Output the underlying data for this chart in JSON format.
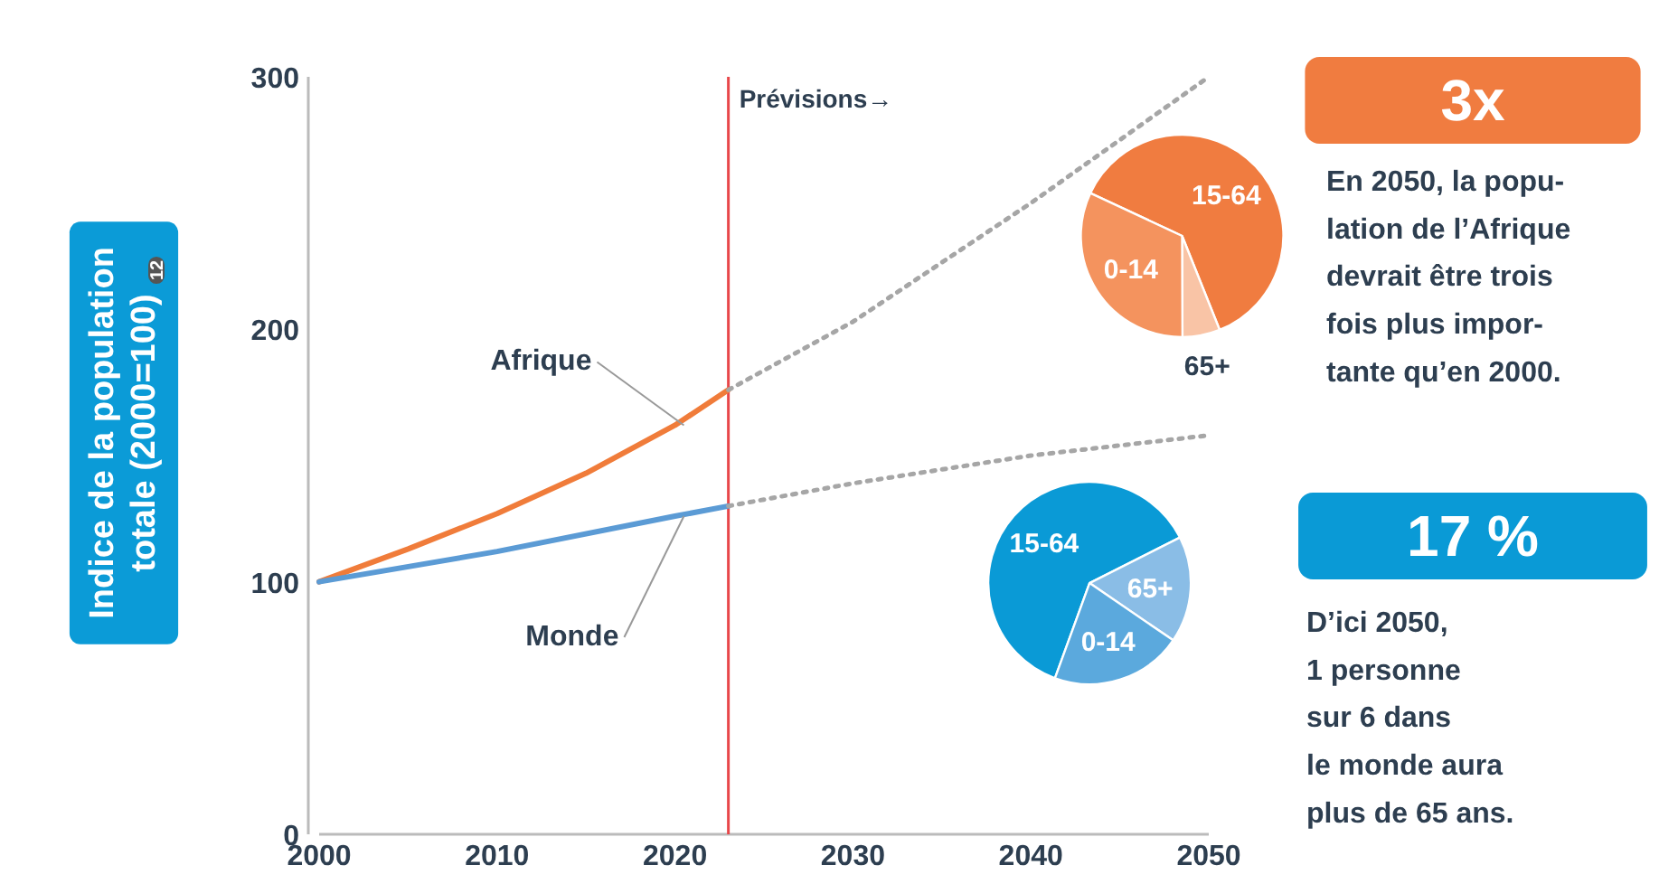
{
  "chart_data": [
    {
      "type": "line",
      "ylabel": "Indice de la population\ntotale (2000=100)",
      "xlim": [
        2000,
        2050
      ],
      "xticks": [
        2000,
        2010,
        2020,
        2030,
        2040,
        2050
      ],
      "ylim": [
        0,
        300
      ],
      "yticks": [
        0,
        100,
        200,
        300
      ],
      "grid": false,
      "marker": "none",
      "series": [
        {
          "name": "Afrique",
          "color": "#f07c3a",
          "line_style": "solid",
          "x": [
            2000,
            2005,
            2010,
            2015,
            2020,
            2023
          ],
          "values": [
            100,
            113,
            127,
            143,
            162,
            176
          ]
        },
        {
          "color": "#a6a6a6",
          "line_style": "dotted",
          "x": [
            2023,
            2030,
            2040,
            2050
          ],
          "values": [
            176,
            203,
            250,
            300
          ]
        },
        {
          "name": "Monde",
          "color": "#5b9bd5",
          "line_style": "solid",
          "x": [
            2000,
            2010,
            2020,
            2023
          ],
          "values": [
            100,
            112,
            126,
            130
          ]
        },
        {
          "color": "#a6a6a6",
          "line_style": "dotted",
          "x": [
            2023,
            2030,
            2040,
            2050
          ],
          "values": [
            130,
            139,
            150,
            158
          ]
        }
      ],
      "ref_lines": [
        {
          "axis": "x",
          "value": 2023,
          "label": "Prévisions→",
          "color": "#e8474a"
        }
      ],
      "annotations": [
        "3x",
        "En 2050, la popu-\nlation de l’Afrique\ndevrait être trois\nfois plus impor-\ntante qu’en 2000.",
        "17 %",
        "D’ici 2050,\n1 personne\nsur 6 dans\nle monde aura\nplus de 65 ans.",
        "12"
      ]
    },
    {
      "type": "pie",
      "categories": [
        "15-64",
        "65+",
        "0-14"
      ],
      "values": [
        62,
        6,
        32
      ],
      "colors": [
        "#f07c40",
        "#f9c4a6",
        "#f4935e"
      ]
    },
    {
      "type": "pie",
      "categories": [
        "15-64",
        "65+",
        "0-14"
      ],
      "values": [
        62,
        17,
        21
      ],
      "colors": [
        "#0a9ad6",
        "#8abde6",
        "#5ba9dd"
      ]
    }
  ]
}
